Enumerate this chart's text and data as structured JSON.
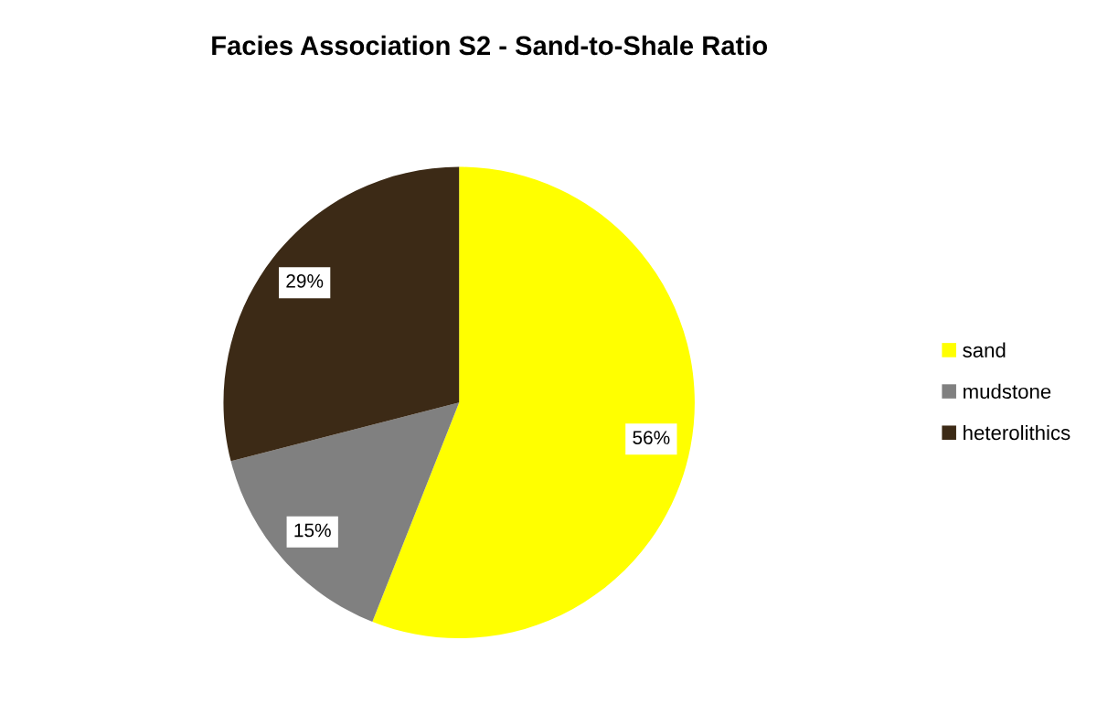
{
  "chart_data": {
    "type": "pie",
    "title": "Facies Association S2 - Sand-to-Shale Ratio",
    "categories": [
      "sand",
      "mudstone",
      "heterolithics"
    ],
    "values": [
      56,
      15,
      29
    ],
    "colors": [
      "#ffff00",
      "#808080",
      "#3c2a16"
    ],
    "value_labels": [
      "56%",
      "15%",
      "29%"
    ],
    "legend": "right"
  }
}
